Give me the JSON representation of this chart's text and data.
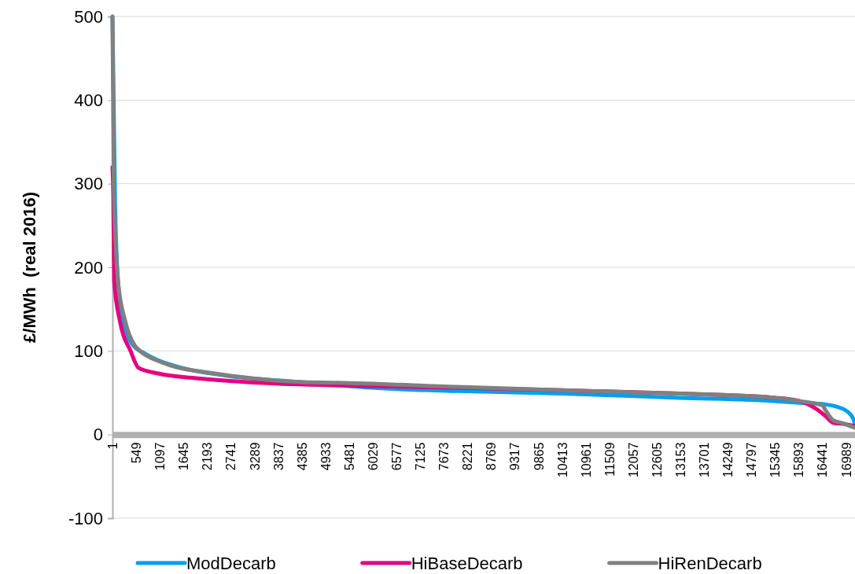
{
  "chart_data": {
    "type": "line",
    "ylabel": "£/MWh  (real 2016)",
    "xlim": [
      1,
      17200
    ],
    "ylim": [
      -100,
      500
    ],
    "yticks": [
      -100,
      0,
      100,
      200,
      300,
      400,
      500
    ],
    "xticks": [
      1,
      549,
      1097,
      1645,
      2193,
      2741,
      3289,
      3837,
      4385,
      4933,
      5481,
      6029,
      6577,
      7125,
      7673,
      8221,
      8769,
      9317,
      9865,
      10413,
      10961,
      11509,
      12057,
      12605,
      13153,
      13701,
      14249,
      14797,
      15345,
      15893,
      16441,
      16989
    ],
    "grid": "y",
    "legend": "bottom",
    "marker": "none",
    "line_style": "solid",
    "series": [
      {
        "name": "ModDecarb",
        "color": "#00a0ee",
        "x": [
          1,
          60,
          128,
          250,
          475,
          750,
          1100,
          1590,
          2700,
          4320,
          6000,
          8000,
          10400,
          13150,
          15350,
          15920,
          16520,
          16800,
          17010,
          17160,
          17200
        ],
        "values": [
          500,
          280,
          184,
          135,
          107,
          97,
          88,
          80,
          70,
          63,
          56,
          52,
          49,
          44,
          40,
          38,
          36,
          33,
          28,
          19,
          12
        ]
      },
      {
        "name": "HiBaseDecarb",
        "color": "#e6007e",
        "x": [
          1,
          20,
          40,
          180,
          420,
          600,
          1060,
          2040,
          4320,
          6000,
          8000,
          10400,
          13150,
          15350,
          15920,
          16290,
          16520,
          16700,
          16900,
          17200
        ],
        "values": [
          320,
          285,
          184,
          134,
          100,
          80,
          73,
          67,
          60,
          58,
          56,
          53,
          49,
          44,
          40,
          31,
          22,
          14,
          13,
          10
        ]
      },
      {
        "name": "HiRenDecarb",
        "color": "#808080",
        "x": [
          1,
          30,
          128,
          300,
          510,
          640,
          1165,
          2370,
          3300,
          4320,
          5230,
          8000,
          10400,
          13150,
          15350,
          15920,
          16440,
          16520,
          16700,
          16890,
          17200
        ],
        "values": [
          500,
          300,
          184,
          135,
          107,
          100,
          86,
          73,
          67,
          63,
          62,
          57,
          53,
          49,
          44,
          40,
          35,
          29,
          17,
          14,
          8
        ]
      }
    ]
  }
}
